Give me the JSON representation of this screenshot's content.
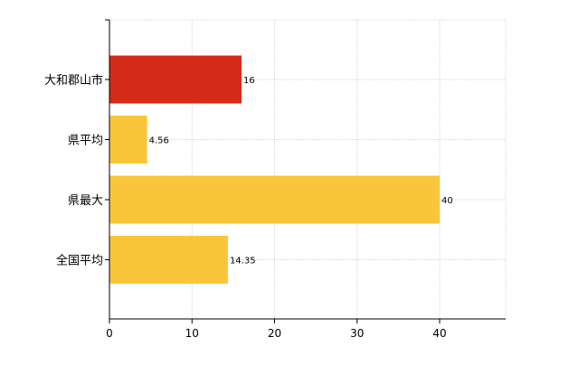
{
  "chart_data": {
    "type": "bar",
    "orientation": "horizontal",
    "categories": [
      "大和郡山市",
      "県平均",
      "県最大",
      "全国平均"
    ],
    "values": [
      16,
      4.56,
      40,
      14.35
    ],
    "value_labels": [
      "16",
      "4.56",
      "40",
      "14.35"
    ],
    "bar_colors": [
      "#d42a1a",
      "#f9c63b",
      "#f9c63b",
      "#f9c63b"
    ],
    "title": "",
    "xlabel": "",
    "ylabel": "",
    "xlim": [
      0,
      48
    ],
    "xticks": [
      0,
      10,
      20,
      30,
      40
    ],
    "xtick_labels": [
      "0",
      "10",
      "20",
      "30",
      "40"
    ],
    "grid": true,
    "legend": "none"
  }
}
